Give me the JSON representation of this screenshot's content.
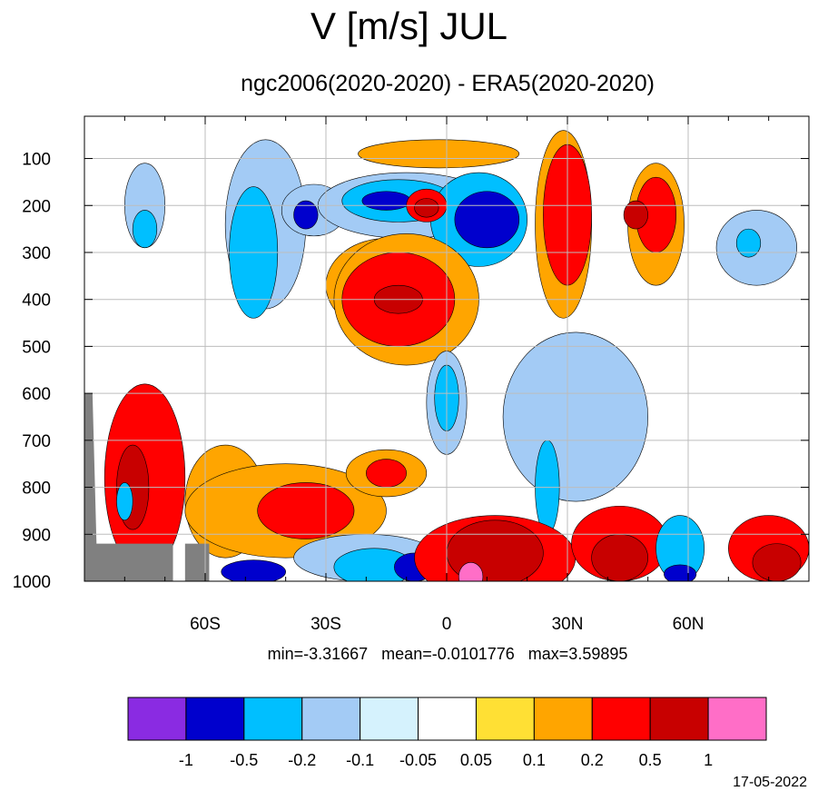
{
  "chart_data": {
    "type": "heatmap",
    "title": "V [m/s] JUL",
    "subtitle": "ngc2006(2020-2020) - ERA5(2020-2020)",
    "stats_text": "min=-3.31667   mean=-0.0101776   max=3.59895",
    "date": "17-05-2022",
    "x_axis": {
      "ticks": [
        -60,
        -30,
        0,
        30,
        60
      ],
      "tick_labels": [
        "60S",
        "30S",
        "0",
        "30N",
        "60N"
      ],
      "range": [
        -90,
        90
      ]
    },
    "y_axis": {
      "ticks": [
        100,
        200,
        300,
        400,
        500,
        600,
        700,
        800,
        900,
        1000
      ],
      "tick_labels": [
        "100",
        "200",
        "300",
        "400",
        "500",
        "600",
        "700",
        "800",
        "900",
        "1000"
      ],
      "range": [
        10,
        1000
      ],
      "inverted": true
    },
    "grid": true,
    "colorbar": {
      "levels": [
        "-1",
        "-0.5",
        "-0.2",
        "-0.1",
        "-0.05",
        "0.05",
        "0.1",
        "0.2",
        "0.5",
        "1"
      ],
      "colors": [
        "#8a2be2",
        "#0000cd",
        "#00bfff",
        "#a3cbf5",
        "#d5f2fd",
        "#ffffff",
        "#ffe034",
        "#ffa500",
        "#ff0000",
        "#c80000",
        "#ff6ec7"
      ]
    },
    "missing_color": "#808080",
    "field_blobs": [
      {
        "lat": -45,
        "p": 130,
        "rx": 7,
        "rp": 40,
        "level": 2
      },
      {
        "lat": -45,
        "p": 240,
        "rx": 10,
        "rp": 180,
        "level": 3
      },
      {
        "lat": -48,
        "p": 300,
        "rx": 6,
        "rp": 140,
        "level": 2
      },
      {
        "lat": -75,
        "p": 200,
        "rx": 5,
        "rp": 90,
        "level": 3
      },
      {
        "lat": -75,
        "p": 250,
        "rx": 3,
        "rp": 40,
        "level": 2
      },
      {
        "lat": -33,
        "p": 210,
        "rx": 8,
        "rp": 55,
        "level": 3
      },
      {
        "lat": -35,
        "p": 220,
        "rx": 3,
        "rp": 30,
        "level": 1
      },
      {
        "lat": -2,
        "p": 90,
        "rx": 20,
        "rp": 30,
        "level": 7
      },
      {
        "lat": -10,
        "p": 200,
        "rx": 22,
        "rp": 70,
        "level": 3
      },
      {
        "lat": -12,
        "p": 190,
        "rx": 14,
        "rp": 45,
        "level": 2
      },
      {
        "lat": -15,
        "p": 190,
        "rx": 6,
        "rp": 20,
        "level": 1
      },
      {
        "lat": 8,
        "p": 230,
        "rx": 12,
        "rp": 100,
        "level": 2
      },
      {
        "lat": 10,
        "p": 230,
        "rx": 8,
        "rp": 60,
        "level": 1
      },
      {
        "lat": -5,
        "p": 200,
        "rx": 5,
        "rp": 35,
        "level": 8
      },
      {
        "lat": -5,
        "p": 205,
        "rx": 3,
        "rp": 20,
        "level": 9
      },
      {
        "lat": -15,
        "p": 370,
        "rx": 15,
        "rp": 100,
        "level": 7
      },
      {
        "lat": -10,
        "p": 400,
        "rx": 18,
        "rp": 140,
        "level": 7
      },
      {
        "lat": -12,
        "p": 400,
        "rx": 14,
        "rp": 100,
        "level": 8
      },
      {
        "lat": -12,
        "p": 400,
        "rx": 6,
        "rp": 30,
        "level": 9
      },
      {
        "lat": 0,
        "p": 620,
        "rx": 5,
        "rp": 110,
        "level": 3
      },
      {
        "lat": 0,
        "p": 610,
        "rx": 3,
        "rp": 70,
        "level": 2
      },
      {
        "lat": 29,
        "p": 240,
        "rx": 7,
        "rp": 200,
        "level": 7
      },
      {
        "lat": 30,
        "p": 220,
        "rx": 6,
        "rp": 150,
        "level": 8
      },
      {
        "lat": 52,
        "p": 240,
        "rx": 7,
        "rp": 130,
        "level": 7
      },
      {
        "lat": 52,
        "p": 220,
        "rx": 5,
        "rp": 80,
        "level": 8
      },
      {
        "lat": 47,
        "p": 220,
        "rx": 3,
        "rp": 30,
        "level": 9
      },
      {
        "lat": 77,
        "p": 290,
        "rx": 10,
        "rp": 80,
        "level": 3
      },
      {
        "lat": 75,
        "p": 280,
        "rx": 3,
        "rp": 30,
        "level": 2
      },
      {
        "lat": 32,
        "p": 650,
        "rx": 18,
        "rp": 180,
        "level": 3
      },
      {
        "lat": 25,
        "p": 800,
        "rx": 3,
        "rp": 100,
        "level": 2
      },
      {
        "lat": -55,
        "p": 830,
        "rx": 10,
        "rp": 120,
        "level": 7
      },
      {
        "lat": -75,
        "p": 780,
        "rx": 10,
        "rp": 200,
        "level": 8
      },
      {
        "lat": -78,
        "p": 800,
        "rx": 4,
        "rp": 90,
        "level": 9
      },
      {
        "lat": -80,
        "p": 830,
        "rx": 2,
        "rp": 40,
        "level": 2
      },
      {
        "lat": -40,
        "p": 850,
        "rx": 25,
        "rp": 100,
        "level": 7
      },
      {
        "lat": -35,
        "p": 850,
        "rx": 12,
        "rp": 60,
        "level": 8
      },
      {
        "lat": -20,
        "p": 950,
        "rx": 18,
        "rp": 50,
        "level": 3
      },
      {
        "lat": -18,
        "p": 970,
        "rx": 10,
        "rp": 40,
        "level": 2
      },
      {
        "lat": -8,
        "p": 970,
        "rx": 5,
        "rp": 30,
        "level": 1
      },
      {
        "lat": -48,
        "p": 980,
        "rx": 8,
        "rp": 25,
        "level": 1
      },
      {
        "lat": -15,
        "p": 770,
        "rx": 10,
        "rp": 50,
        "level": 7
      },
      {
        "lat": -15,
        "p": 770,
        "rx": 5,
        "rp": 30,
        "level": 8
      },
      {
        "lat": 12,
        "p": 950,
        "rx": 20,
        "rp": 90,
        "level": 8
      },
      {
        "lat": 12,
        "p": 940,
        "rx": 12,
        "rp": 70,
        "level": 9
      },
      {
        "lat": 6,
        "p": 990,
        "rx": 3,
        "rp": 30,
        "level": 10
      },
      {
        "lat": 43,
        "p": 920,
        "rx": 12,
        "rp": 80,
        "level": 8
      },
      {
        "lat": 43,
        "p": 950,
        "rx": 7,
        "rp": 50,
        "level": 9
      },
      {
        "lat": 58,
        "p": 930,
        "rx": 6,
        "rp": 70,
        "level": 2
      },
      {
        "lat": 58,
        "p": 985,
        "rx": 4,
        "rp": 20,
        "level": 1
      },
      {
        "lat": 80,
        "p": 930,
        "rx": 10,
        "rp": 70,
        "level": 8
      },
      {
        "lat": 82,
        "p": 960,
        "rx": 6,
        "rp": 40,
        "level": 9
      }
    ]
  }
}
